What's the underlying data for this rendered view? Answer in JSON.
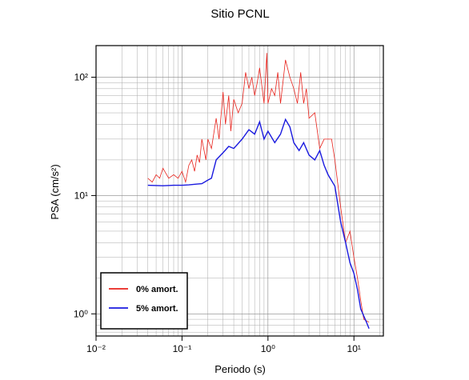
{
  "chart_data": {
    "type": "line",
    "title": "Sitio PCNL",
    "x_label": "Periodo (s)",
    "y_label": "PSA (cm/s²)",
    "xscale": "log",
    "yscale": "log",
    "xlim": [
      0.01,
      22
    ],
    "ylim": [
      0.65,
      185
    ],
    "xticks": [
      {
        "value": 0.01,
        "label": "10⁻²"
      },
      {
        "value": 0.1,
        "label": "10⁻¹"
      },
      {
        "value": 1,
        "label": "10⁰"
      },
      {
        "value": 10,
        "label": "10¹"
      }
    ],
    "yticks": [
      {
        "value": 1,
        "label": "10⁰"
      },
      {
        "value": 10,
        "label": "10¹"
      },
      {
        "value": 100,
        "label": "10²"
      }
    ],
    "xticks_minor": [
      0.02,
      0.03,
      0.04,
      0.05,
      0.06,
      0.07,
      0.08,
      0.09,
      0.2,
      0.3,
      0.4,
      0.5,
      0.6,
      0.7,
      0.8,
      0.9,
      2,
      3,
      4,
      5,
      6,
      7,
      8,
      9,
      20
    ],
    "yticks_minor": [
      0.7,
      0.8,
      0.9,
      2,
      3,
      4,
      5,
      6,
      7,
      8,
      9,
      20,
      30,
      40,
      50,
      60,
      70,
      80,
      90
    ],
    "grid": true,
    "legend": "lower left",
    "series": [
      {
        "name": "0% amort.",
        "color": "#e8231c",
        "x": [
          0.04,
          0.045,
          0.05,
          0.055,
          0.06,
          0.07,
          0.08,
          0.09,
          0.1,
          0.11,
          0.12,
          0.13,
          0.14,
          0.15,
          0.16,
          0.17,
          0.19,
          0.2,
          0.22,
          0.25,
          0.27,
          0.3,
          0.32,
          0.35,
          0.37,
          0.4,
          0.45,
          0.5,
          0.55,
          0.6,
          0.65,
          0.7,
          0.75,
          0.8,
          0.9,
          0.97,
          1.0,
          1.1,
          1.2,
          1.3,
          1.4,
          1.6,
          1.8,
          2.0,
          2.2,
          2.4,
          2.6,
          2.8,
          3.0,
          3.5,
          4,
          4.5,
          5,
          5.5,
          6,
          7,
          8,
          9,
          10,
          11,
          12,
          13,
          15
        ],
        "values": [
          14,
          13,
          15,
          14,
          17,
          14,
          15,
          14,
          16,
          13,
          18,
          20,
          16,
          22,
          19,
          30,
          20,
          30,
          25,
          45,
          30,
          75,
          40,
          70,
          35,
          65,
          50,
          60,
          110,
          80,
          100,
          70,
          90,
          120,
          60,
          160,
          60,
          80,
          70,
          110,
          60,
          140,
          100,
          80,
          60,
          110,
          60,
          80,
          45,
          50,
          25,
          30,
          30,
          30,
          20,
          8,
          4,
          5,
          3,
          2,
          1.3,
          0.9,
          0.85
        ]
      },
      {
        "name": "5% amort.",
        "color": "#1a1adf",
        "x": [
          0.04,
          0.06,
          0.08,
          0.1,
          0.12,
          0.15,
          0.17,
          0.2,
          0.22,
          0.25,
          0.3,
          0.35,
          0.4,
          0.5,
          0.6,
          0.7,
          0.8,
          0.9,
          1.0,
          1.2,
          1.4,
          1.6,
          1.8,
          2.0,
          2.3,
          2.6,
          3.0,
          3.5,
          4,
          4.5,
          5,
          6,
          7,
          8,
          9,
          10,
          11,
          12,
          14,
          15
        ],
        "values": [
          12.2,
          12.1,
          12.2,
          12.2,
          12.3,
          12.5,
          12.6,
          13.5,
          14,
          20,
          23,
          26,
          25,
          30,
          36,
          33,
          42,
          30,
          35,
          28,
          33,
          44,
          38,
          28,
          24,
          28,
          22,
          20,
          24,
          18,
          15,
          12,
          6,
          4,
          2.7,
          2.2,
          1.6,
          1.1,
          0.85,
          0.75
        ]
      }
    ]
  }
}
